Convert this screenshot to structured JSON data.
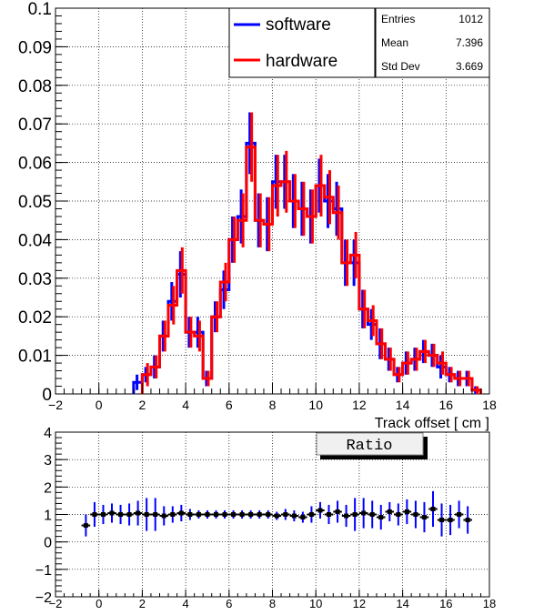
{
  "chart_data": [
    {
      "type": "line",
      "step": true,
      "xlabel": "Track offset [ cm ]",
      "ylabel": "",
      "title": "",
      "xlim": [
        -2,
        18
      ],
      "ylim": [
        0,
        0.1
      ],
      "xticks": [
        "−2",
        "0",
        "2",
        "4",
        "6",
        "8",
        "10",
        "12",
        "14",
        "16",
        "18"
      ],
      "yticks": [
        "0",
        "0.01",
        "0.02",
        "0.03",
        "0.04",
        "0.05",
        "0.06",
        "0.07",
        "0.08",
        "0.09",
        "0.1"
      ],
      "grid": true,
      "legend_position": "top-right",
      "bin_width": 0.4,
      "bin_centers": [
        -0.6,
        -0.2,
        0.2,
        0.6,
        1.0,
        1.4,
        1.8,
        2.2,
        2.6,
        3.0,
        3.4,
        3.8,
        4.2,
        4.6,
        5.0,
        5.4,
        5.8,
        6.2,
        6.6,
        7.0,
        7.4,
        7.8,
        8.2,
        8.6,
        9.0,
        9.4,
        9.8,
        10.2,
        10.6,
        11.0,
        11.4,
        11.8,
        12.2,
        12.6,
        13.0,
        13.4,
        13.8,
        14.2,
        14.6,
        15.0,
        15.4,
        15.8,
        16.2,
        16.6,
        17.0,
        17.4,
        17.8
      ],
      "series": [
        {
          "name": "software",
          "color": "#0000ff",
          "values": [
            0.003,
            0.005,
            0.007,
            0.015,
            0.024,
            0.031,
            0.016,
            0.016,
            0.004,
            0.02,
            0.027,
            0.04,
            0.046,
            0.065,
            0.045,
            0.044,
            0.055,
            0.055,
            0.05,
            0.048,
            0.046,
            0.054,
            0.05,
            0.048,
            0.034,
            0.034,
            0.022,
            0.018,
            0.013,
            0.009,
            0.005,
            0.008,
            0.009,
            0.011,
            0.01,
            0.007,
            0.005,
            0.004,
            0.004,
            0.001
          ],
          "errors": [
            0.002,
            0.002,
            0.003,
            0.004,
            0.005,
            0.006,
            0.004,
            0.004,
            0.002,
            0.004,
            0.005,
            0.006,
            0.007,
            0.008,
            0.007,
            0.007,
            0.007,
            0.007,
            0.007,
            0.007,
            0.007,
            0.007,
            0.007,
            0.007,
            0.006,
            0.006,
            0.005,
            0.004,
            0.004,
            0.003,
            0.002,
            0.003,
            0.003,
            0.003,
            0.003,
            0.003,
            0.002,
            0.002,
            0.002,
            0.001
          ],
          "start_bin": 6
        },
        {
          "name": "hardware",
          "color": "#ff0000",
          "values": [
            0.005,
            0.007,
            0.015,
            0.023,
            0.032,
            0.016,
            0.015,
            0.004,
            0.02,
            0.029,
            0.04,
            0.045,
            0.064,
            0.045,
            0.044,
            0.054,
            0.055,
            0.05,
            0.048,
            0.046,
            0.054,
            0.051,
            0.047,
            0.034,
            0.036,
            0.022,
            0.019,
            0.013,
            0.009,
            0.005,
            0.008,
            0.009,
            0.011,
            0.01,
            0.008,
            0.005,
            0.004,
            0.004,
            0.001
          ],
          "errors": [
            0.003,
            0.003,
            0.004,
            0.005,
            0.006,
            0.004,
            0.004,
            0.002,
            0.004,
            0.005,
            0.006,
            0.007,
            0.009,
            0.007,
            0.007,
            0.008,
            0.008,
            0.007,
            0.007,
            0.007,
            0.008,
            0.007,
            0.007,
            0.006,
            0.006,
            0.005,
            0.004,
            0.004,
            0.003,
            0.002,
            0.003,
            0.003,
            0.003,
            0.003,
            0.003,
            0.002,
            0.002,
            0.002,
            0.001
          ],
          "start_bin": 7
        }
      ],
      "stats": {
        "labels": [
          "Entries",
          "Mean",
          "Std Dev"
        ],
        "values": [
          "1012",
          "7.396",
          "3.669"
        ]
      }
    },
    {
      "type": "scatter",
      "title": "Ratio",
      "xlim": [
        -2,
        18
      ],
      "ylim": [
        -2,
        4
      ],
      "xticks": [
        "−2",
        "0",
        "2",
        "4",
        "6",
        "8",
        "10",
        "12",
        "14",
        "16",
        "18"
      ],
      "yticks": [
        "−2",
        "−1",
        "0",
        "1",
        "2",
        "3",
        "4"
      ],
      "grid": true,
      "marker_color": "#000000",
      "error_color": "#0000ff",
      "x": [
        -0.6,
        -0.2,
        0.2,
        0.6,
        1.0,
        1.4,
        1.8,
        2.2,
        2.6,
        3.0,
        3.4,
        3.8,
        4.2,
        4.6,
        5.0,
        5.4,
        5.8,
        6.2,
        6.6,
        7.0,
        7.4,
        7.8,
        8.2,
        8.6,
        9.0,
        9.4,
        9.8,
        10.2,
        10.6,
        11.0,
        11.4,
        11.8,
        12.2,
        12.6,
        13.0,
        13.4,
        13.8,
        14.2,
        14.6,
        15.0,
        15.4,
        15.8,
        16.2,
        16.6,
        17.0
      ],
      "y": [
        0.6,
        1.0,
        1.0,
        1.05,
        1.0,
        1.0,
        1.05,
        1.0,
        1.0,
        0.95,
        1.0,
        1.05,
        1.0,
        1.0,
        1.0,
        1.0,
        1.0,
        1.0,
        1.0,
        1.0,
        1.0,
        1.0,
        0.95,
        1.0,
        0.95,
        0.9,
        1.0,
        1.15,
        1.0,
        1.1,
        0.95,
        1.0,
        1.05,
        1.0,
        0.9,
        1.1,
        1.0,
        1.1,
        1.0,
        0.9,
        1.2,
        0.8,
        0.8,
        1.0,
        0.8
      ],
      "err": [
        0.4,
        0.45,
        0.35,
        0.35,
        0.35,
        0.4,
        0.45,
        0.6,
        0.6,
        0.35,
        0.3,
        0.3,
        0.2,
        0.15,
        0.15,
        0.15,
        0.15,
        0.15,
        0.15,
        0.15,
        0.15,
        0.15,
        0.15,
        0.2,
        0.2,
        0.2,
        0.3,
        0.3,
        0.35,
        0.4,
        0.4,
        0.6,
        0.55,
        0.5,
        0.45,
        0.35,
        0.4,
        0.45,
        0.5,
        0.55,
        0.65,
        0.6,
        0.55,
        0.5,
        0.5
      ]
    }
  ]
}
